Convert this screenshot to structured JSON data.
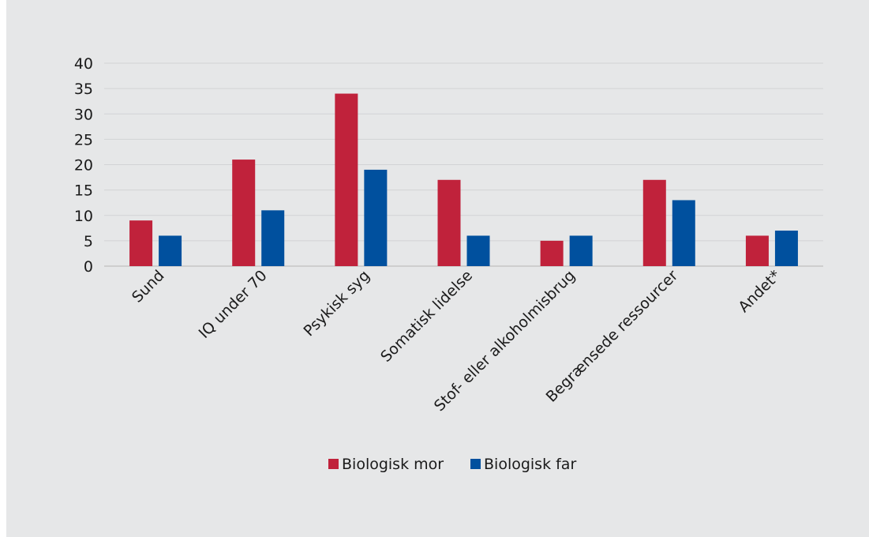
{
  "chart_data": {
    "type": "bar",
    "categories": [
      "Sund",
      "IQ under 70",
      "Psykisk syg",
      "Somatisk lidelse",
      "Stof- eller alkoholmisbrug",
      "Begrænsede ressourcer",
      "Andet*"
    ],
    "series": [
      {
        "name": "Biologisk mor",
        "values": [
          9,
          21,
          34,
          17,
          5,
          17,
          6
        ],
        "color": "#c0223b"
      },
      {
        "name": "Biologisk far",
        "values": [
          6,
          11,
          19,
          6,
          6,
          13,
          7
        ],
        "color": "#00509e"
      }
    ],
    "ylim": [
      0,
      40
    ],
    "yticks": [
      "0",
      "5",
      "10",
      "15",
      "20",
      "25",
      "30",
      "35",
      "40"
    ],
    "grid": true,
    "legend": "bottom-center"
  }
}
